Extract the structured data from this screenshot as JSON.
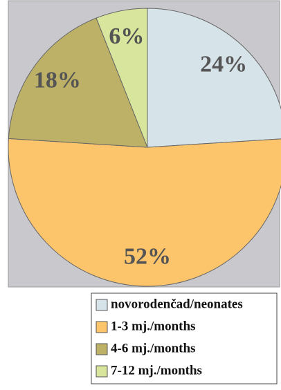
{
  "chart_data": {
    "type": "pie",
    "categories": [
      "novorodenčad/neonates",
      "1-3 mj./months",
      "4-6 mj./months",
      "7-12 mj./months"
    ],
    "values": [
      24,
      52,
      18,
      6
    ],
    "value_labels": [
      "24%",
      "52%",
      "18%",
      "6%"
    ],
    "colors": [
      "#d6e3e9",
      "#fcc56b",
      "#bcb166",
      "#d8e59c"
    ]
  }
}
